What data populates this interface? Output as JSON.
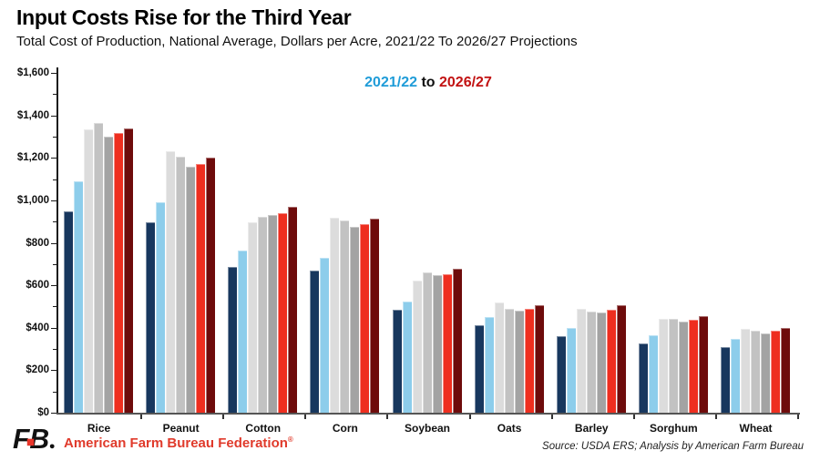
{
  "header": {
    "title": "Input Costs Rise for the Third Year",
    "subtitle": "Total Cost of Production, National Average, Dollars per Acre, 2021/22 To 2026/27 Projections"
  },
  "legend": {
    "start": "2021/22",
    "mid": " to ",
    "end": "2026/27",
    "start_color": "#1f9cd8",
    "end_color": "#c21212"
  },
  "chart_data": {
    "type": "bar",
    "title": "Input Costs Rise for the Third Year",
    "subtitle": "Total Cost of Production, National Average, Dollars per Acre, 2021/22 To 2026/27 Projections",
    "categories": [
      "Rice",
      "Peanut",
      "Cotton",
      "Corn",
      "Soybean",
      "Oats",
      "Barley",
      "Sorghum",
      "Wheat"
    ],
    "series": [
      {
        "name": "2021/22",
        "color": "#17375e",
        "values": [
          950,
          895,
          685,
          670,
          485,
          410,
          360,
          328,
          310
        ]
      },
      {
        "name": "",
        "color": "#8dcdeb",
        "values": [
          1090,
          990,
          765,
          730,
          525,
          452,
          400,
          364,
          349
        ]
      },
      {
        "name": "",
        "color": "#dcdcdc",
        "values": [
          1335,
          1230,
          895,
          920,
          622,
          519,
          490,
          440,
          393
        ]
      },
      {
        "name": "",
        "color": "#c2c2c2",
        "values": [
          1365,
          1205,
          922,
          905,
          659,
          488,
          476,
          442,
          384
        ]
      },
      {
        "name": "",
        "color": "#a3a3a3",
        "values": [
          1300,
          1160,
          930,
          875,
          646,
          480,
          474,
          427,
          374
        ]
      },
      {
        "name": "",
        "color": "#ee2e1f",
        "values": [
          1315,
          1170,
          941,
          890,
          653,
          489,
          484,
          436,
          386
        ]
      },
      {
        "name": "2026/27",
        "color": "#6e0b0b",
        "values": [
          1340,
          1200,
          970,
          915,
          677,
          508,
          505,
          453,
          401
        ]
      }
    ],
    "ylim": [
      0,
      1600
    ],
    "ytick_step": 200,
    "minor_tick_step": 100,
    "ytick_labels": [
      "$1,600",
      "$1,400",
      "$1,200",
      "$1,000",
      "$800",
      "$600",
      "$400",
      "$200",
      "$0"
    ],
    "xlabel": "",
    "ylabel": "",
    "grid": false,
    "legend_position": "top-center"
  },
  "footer": {
    "logo_text": "FB",
    "logo_dot": ".",
    "org": "American Farm Bureau Federation",
    "org_mark": "®",
    "org_color": "#e03a2b",
    "source": "Source: USDA ERS; Analysis by American Farm Bureau"
  }
}
